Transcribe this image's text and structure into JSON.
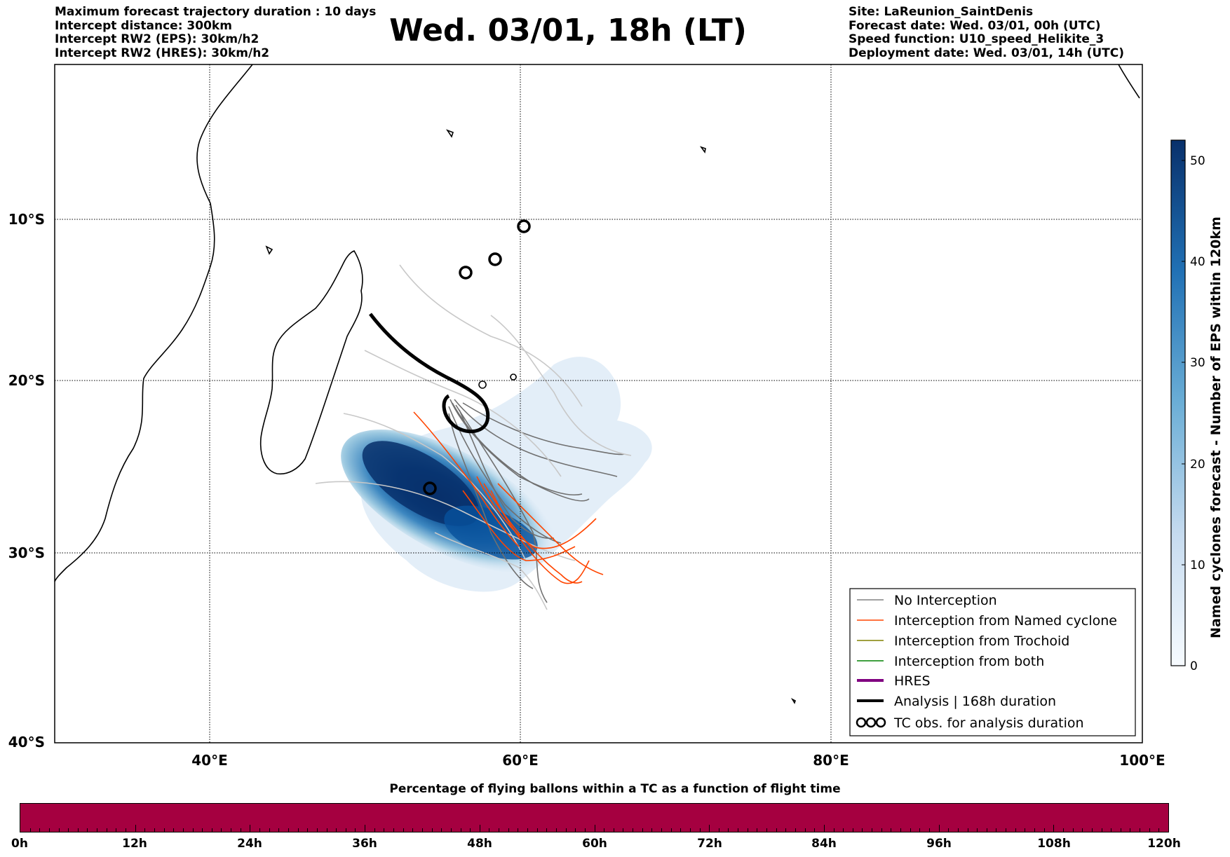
{
  "header_left": [
    "Maximum forecast trajectory duration : 10 days",
    "Intercept distance: 300km",
    "Intercept RW2 (EPS):  30km/h2",
    "Intercept RW2 (HRES): 30km/h2"
  ],
  "title": "Wed. 03/01, 18h (LT)",
  "header_right": [
    "Site: LaReunion_SaintDenis",
    "Forecast date: Wed. 03/01, 00h (UTC)",
    "Speed function: U10_speed_Helikite_3",
    "Deployment date: Wed. 03/01, 14h (UTC)"
  ],
  "map": {
    "lat_labels": [
      "10°S",
      "20°S",
      "30°S",
      "40°S"
    ],
    "lon_labels": [
      "40°E",
      "60°E",
      "80°E",
      "100°E"
    ],
    "extent": {
      "lon_min": 30,
      "lon_max": 100,
      "lat_min": -40,
      "lat_max": 0.3
    }
  },
  "legend": {
    "items": [
      {
        "label": "No Interception",
        "color": "#808080"
      },
      {
        "label": "Interception from Named cyclone",
        "color": "#ff4500"
      },
      {
        "label": "Interception from Trochoid",
        "color": "#808000"
      },
      {
        "label": "Interception from both",
        "color": "#008000"
      },
      {
        "label": "HRES",
        "color": "#800080"
      },
      {
        "label": "Analysis | 168h duration",
        "color": "#000000"
      },
      {
        "label": "TC obs. for analysis duration",
        "color": "#000000",
        "icon": "cyclone-symbol"
      }
    ]
  },
  "colorbar": {
    "label": "Named cyclones forecast - Number of EPS within 120km",
    "ticks": [
      "0",
      "10",
      "20",
      "30",
      "40",
      "50"
    ],
    "max": 52,
    "color_low": "#deebf7",
    "color_high": "#08306b"
  },
  "timebar": {
    "title": "Percentage of flying ballons within a TC as a function of flight time",
    "ticks": [
      "0h",
      "12h",
      "24h",
      "36h",
      "48h",
      "60h",
      "72h",
      "84h",
      "96h",
      "108h",
      "120h"
    ],
    "color": "#a50040"
  }
}
